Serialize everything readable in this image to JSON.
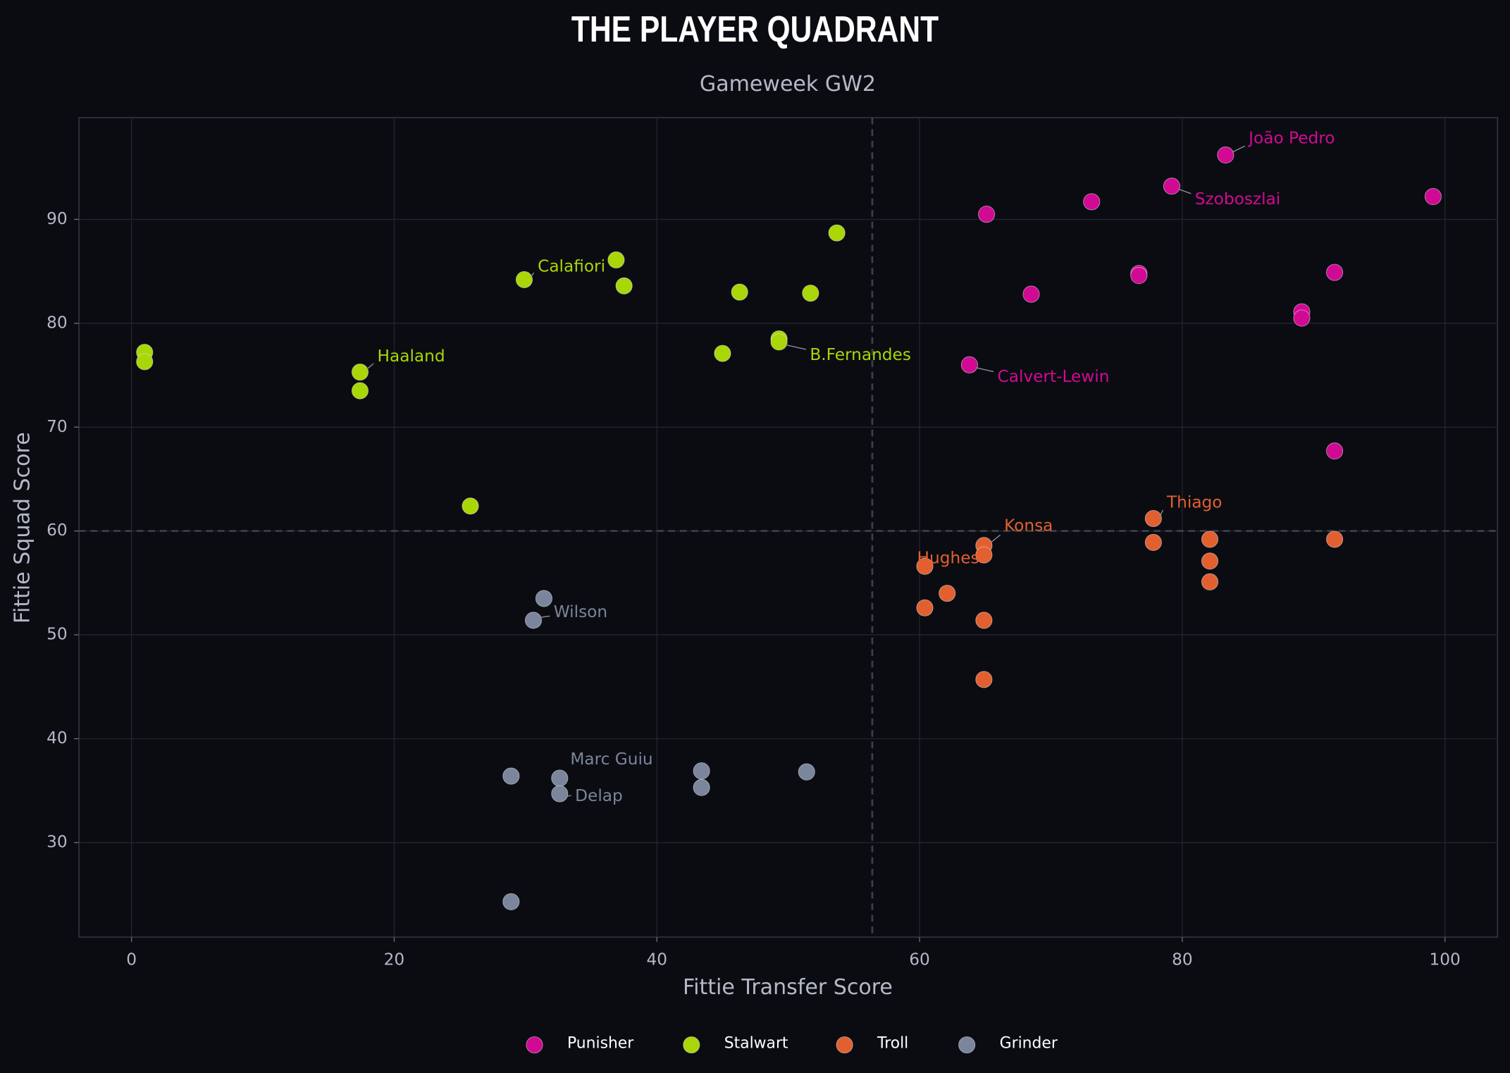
{
  "chart_data": {
    "type": "scatter",
    "title": "THE PLAYER QUADRANT",
    "subtitle": "Gameweek GW2",
    "x_label": "Fittie Transfer Score",
    "y_label": "Fittie Squad Score",
    "xlim": [
      -4,
      104
    ],
    "ylim": [
      20.9,
      99.8
    ],
    "xticks": [
      0,
      20,
      40,
      60,
      80,
      100
    ],
    "yticks": [
      30,
      40,
      50,
      60,
      70,
      80,
      90
    ],
    "grid": true,
    "reference_lines": {
      "x": 56.4,
      "y": 60
    },
    "legend": "lower center",
    "series": [
      {
        "name": "Punisher",
        "color": "#d10a94",
        "x": [
          83.3,
          79.2,
          99.1,
          73.1,
          65.1,
          76.7,
          76.7,
          91.6,
          68.5,
          89.1,
          89.1,
          63.8,
          91.6
        ],
        "y": [
          96.2,
          93.2,
          92.2,
          91.7,
          90.5,
          84.8,
          84.6,
          84.9,
          82.8,
          81.1,
          80.5,
          76.0,
          67.7
        ],
        "labels": [
          "João Pedro",
          "Szoboszlai",
          null,
          null,
          null,
          null,
          null,
          null,
          null,
          null,
          null,
          "Calvert-Lewin",
          null
        ]
      },
      {
        "name": "Stalwart",
        "color": "#a9d606",
        "x": [
          53.7,
          36.9,
          29.9,
          37.5,
          46.3,
          51.7,
          49.3,
          49.3,
          1.0,
          1.0,
          45.0,
          17.4,
          17.4,
          25.8
        ],
        "y": [
          88.7,
          86.1,
          84.2,
          83.6,
          83.0,
          82.9,
          78.5,
          78.2,
          77.2,
          76.3,
          77.1,
          75.3,
          73.5,
          62.4
        ],
        "labels": [
          null,
          null,
          "Calafiori",
          null,
          null,
          null,
          null,
          "B.Fernandes",
          null,
          null,
          null,
          "Haaland",
          null,
          null
        ]
      },
      {
        "name": "Troll",
        "color": "#e2602f",
        "x": [
          77.8,
          82.1,
          91.6,
          64.9,
          77.8,
          64.9,
          82.1,
          60.4,
          82.1,
          62.1,
          60.4,
          64.9,
          64.9
        ],
        "y": [
          61.2,
          59.2,
          59.2,
          58.6,
          58.9,
          57.7,
          57.1,
          56.6,
          55.1,
          54.0,
          52.6,
          51.4,
          45.7
        ],
        "labels": [
          "Thiago",
          null,
          null,
          "Konsa",
          null,
          null,
          null,
          "Hughes",
          null,
          null,
          null,
          null,
          null
        ]
      },
      {
        "name": "Grinder",
        "color": "#7b859b",
        "x": [
          31.4,
          30.6,
          28.9,
          32.6,
          32.6,
          43.4,
          43.4,
          51.4,
          28.9
        ],
        "y": [
          53.5,
          51.4,
          36.4,
          36.2,
          34.7,
          36.9,
          35.3,
          36.8,
          24.3
        ],
        "labels": [
          null,
          "Wilson",
          null,
          "Marc Guiu",
          "Delap",
          null,
          null,
          null,
          null
        ]
      }
    ]
  }
}
